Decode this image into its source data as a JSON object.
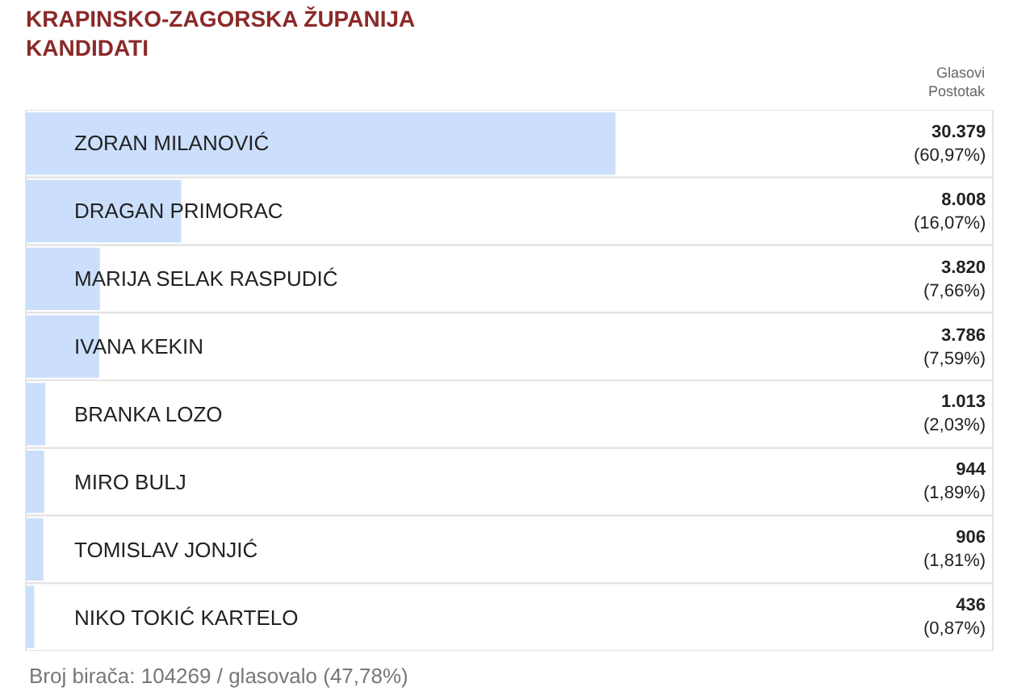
{
  "chart_data": {
    "type": "bar",
    "orientation": "horizontal",
    "title": "KRAPINSKO-ZAGORSKA ŽUPANIJA\nKANDIDATI",
    "categories": [
      "ZORAN MILANOVIĆ",
      "DRAGAN PRIMORAC",
      "MARIJA SELAK RASPUDIĆ",
      "IVANA KEKIN",
      "BRANKA LOZO",
      "MIRO BULJ",
      "TOMISLAV JONJIĆ",
      "NIKO TOKIĆ KARTELO"
    ],
    "values": [
      60.97,
      16.07,
      7.66,
      7.59,
      2.03,
      1.89,
      1.81,
      0.87
    ],
    "value_labels": [
      "30.379\n(60,97%)",
      "8.008\n(16,07%)",
      "3.820\n(7,66%)",
      "3.786\n(7,59%)",
      "1.013\n(2,03%)",
      "944\n(1,89%)",
      "906\n(1,81%)",
      "436\n(0,87%)"
    ],
    "color": "#cbdffc",
    "xlim": [
      0,
      100
    ],
    "tick_labels": false,
    "grid": false,
    "legend": false,
    "annotations": [
      "Glasovi\nPostotak",
      "Broj birača: 104269 / glasovalo (47,78%)"
    ]
  }
}
